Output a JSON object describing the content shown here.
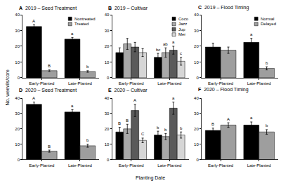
{
  "xlabel": "Planting Date",
  "ylabel": "No. weevils/core",
  "chart_data": [
    {
      "type": "bar",
      "panel": "A",
      "title": "2019 – Seed Treatment",
      "categories": [
        "Early-Planted",
        "Late-Planted"
      ],
      "series": [
        {
          "name": "Nontreated",
          "color": "#000000",
          "values": [
            32.5,
            24.5
          ],
          "errors": [
            1.2,
            1
          ],
          "letters": [
            "A",
            "a"
          ]
        },
        {
          "name": "Treated",
          "color": "#9e9e9e",
          "values": [
            4.5,
            4
          ],
          "errors": [
            0.5,
            0.5
          ],
          "letters": [
            "B",
            "b"
          ]
        }
      ],
      "ylim": [
        0,
        40
      ],
      "yticks": [
        0,
        10,
        20,
        30,
        40
      ],
      "grid": false,
      "legend": "top right"
    },
    {
      "type": "bar",
      "panel": "B",
      "title": "2019 – Cultivar",
      "categories": [
        "Early-Planted",
        "Late-Planted"
      ],
      "series": [
        {
          "name": "Coco",
          "color": "#000000",
          "values": [
            16,
            13
          ],
          "errors": [
            3,
            2.5
          ],
          "letters": [
            null,
            "bc"
          ]
        },
        {
          "name": "Jazz",
          "color": "#a8a8a8",
          "values": [
            21.5,
            16
          ],
          "errors": [
            3.5,
            3
          ],
          "letters": [
            null,
            "ab"
          ]
        },
        {
          "name": "Jup",
          "color": "#5a5a5a",
          "values": [
            19.5,
            17.5
          ],
          "errors": [
            3,
            2.5
          ],
          "letters": [
            null,
            "a"
          ]
        },
        {
          "name": "Mer",
          "color": "#d6d6d6",
          "values": [
            16,
            10.5
          ],
          "errors": [
            2.5,
            2.5
          ],
          "letters": [
            null,
            "c"
          ]
        }
      ],
      "ylim": [
        0,
        40
      ],
      "yticks": [
        0,
        10,
        20,
        30,
        40
      ],
      "grid": false,
      "legend": "top right"
    },
    {
      "type": "bar",
      "panel": "C",
      "title": "2019 – Flood Timing",
      "categories": [
        "Early-Planted",
        "Late-Planted"
      ],
      "series": [
        {
          "name": "Normal",
          "color": "#000000",
          "values": [
            19.5,
            22.5
          ],
          "errors": [
            2.5,
            2.5
          ],
          "letters": [
            null,
            "a"
          ]
        },
        {
          "name": "Delayed",
          "color": "#9e9e9e",
          "values": [
            17.5,
            6
          ],
          "errors": [
            2,
            1
          ],
          "letters": [
            null,
            "b"
          ]
        }
      ],
      "ylim": [
        0,
        40
      ],
      "yticks": [
        0,
        10,
        20,
        30,
        40
      ],
      "grid": false,
      "legend": "top right"
    },
    {
      "type": "bar",
      "panel": "D",
      "title": "2020 – Seed Treatment",
      "categories": [
        "Early-Planted",
        "Late-Planted"
      ],
      "series": [
        {
          "name": "Nontreated",
          "color": "#000000",
          "values": [
            36,
            31
          ],
          "errors": [
            1.5,
            1.5
          ],
          "letters": [
            "A",
            "a"
          ]
        },
        {
          "name": "Treated",
          "color": "#9e9e9e",
          "values": [
            5.5,
            9
          ],
          "errors": [
            0.7,
            1
          ],
          "letters": [
            "B",
            "b"
          ]
        }
      ],
      "ylim": [
        0,
        40
      ],
      "yticks": [
        0,
        10,
        20,
        30,
        40
      ],
      "grid": false
    },
    {
      "type": "bar",
      "panel": "E",
      "title": "2020 – Cultivar",
      "categories": [
        "Early-Planted",
        "Late-Planted"
      ],
      "series": [
        {
          "name": "Coco",
          "color": "#000000",
          "values": [
            18,
            16
          ],
          "errors": [
            3,
            2.5
          ],
          "letters": [
            "B",
            "b"
          ]
        },
        {
          "name": "Jazz",
          "color": "#a8a8a8",
          "values": [
            20,
            15
          ],
          "errors": [
            3,
            2
          ],
          "letters": [
            "B",
            "b"
          ]
        },
        {
          "name": "Jup",
          "color": "#5a5a5a",
          "values": [
            32,
            33.5
          ],
          "errors": [
            4,
            4
          ],
          "letters": [
            "A",
            "a"
          ]
        },
        {
          "name": "Mer",
          "color": "#d6d6d6",
          "values": [
            12.5,
            16
          ],
          "errors": [
            1.5,
            2
          ],
          "letters": [
            "C",
            "b"
          ]
        }
      ],
      "ylim": [
        0,
        40
      ],
      "yticks": [
        0,
        10,
        20,
        30,
        40
      ],
      "grid": false
    },
    {
      "type": "bar",
      "panel": "F",
      "title": "2020 – Flood Timing",
      "categories": [
        "Early-Planted",
        "Late-Planted"
      ],
      "series": [
        {
          "name": "Normal",
          "color": "#000000",
          "values": [
            19,
            22.5
          ],
          "errors": [
            1.5,
            2
          ],
          "letters": [
            "B",
            "a"
          ]
        },
        {
          "name": "Delayed",
          "color": "#9e9e9e",
          "values": [
            22.5,
            18
          ],
          "errors": [
            1.5,
            1.5
          ],
          "letters": [
            "A",
            "b"
          ]
        }
      ],
      "ylim": [
        0,
        40
      ],
      "yticks": [
        0,
        10,
        20,
        30,
        40
      ],
      "grid": false
    }
  ]
}
